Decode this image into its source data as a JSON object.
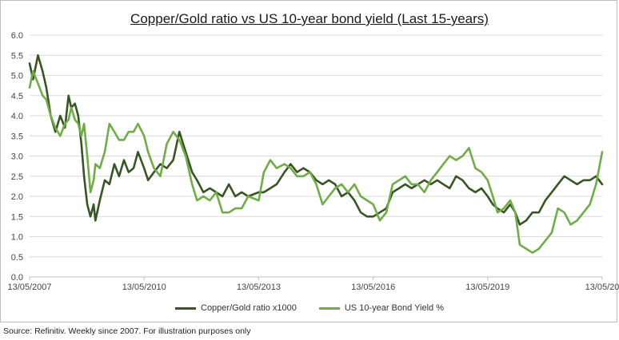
{
  "chart_data": {
    "type": "line",
    "title": "Copper/Gold ratio vs US 10-year bond yield (Last 15-years)",
    "xlabel": "",
    "ylabel": "",
    "ylim": [
      0.0,
      6.0
    ],
    "y_ticks": [
      "0.0",
      "0.5",
      "1.0",
      "1.5",
      "2.0",
      "2.5",
      "3.0",
      "3.5",
      "4.0",
      "4.5",
      "5.0",
      "5.5",
      "6.0"
    ],
    "xlim": [
      "2007-05-13",
      "2022-05-13"
    ],
    "x_tick_labels": [
      "13/05/2007",
      "13/05/2010",
      "13/05/2013",
      "13/05/2016",
      "13/05/2019",
      "13/05/20"
    ],
    "x_tick_dates": [
      "2007-05-13",
      "2010-05-13",
      "2013-05-13",
      "2016-05-13",
      "2019-05-13",
      "2022-05-13"
    ],
    "grid": "horizontal",
    "legend_position": "bottom",
    "series": [
      {
        "name": "Copper/Gold ratio x1000",
        "color": "#375623",
        "points": [
          [
            "2007-05-13",
            5.3
          ],
          [
            "2007-06-15",
            4.9
          ],
          [
            "2007-08-01",
            5.5
          ],
          [
            "2007-09-15",
            5.1
          ],
          [
            "2007-10-20",
            4.7
          ],
          [
            "2007-12-01",
            4.0
          ],
          [
            "2008-01-15",
            3.6
          ],
          [
            "2008-03-01",
            4.0
          ],
          [
            "2008-04-15",
            3.7
          ],
          [
            "2008-05-20",
            4.5
          ],
          [
            "2008-06-15",
            4.2
          ],
          [
            "2008-07-20",
            4.3
          ],
          [
            "2008-08-20",
            4.0
          ],
          [
            "2008-09-20",
            3.3
          ],
          [
            "2008-10-15",
            2.5
          ],
          [
            "2008-11-15",
            1.8
          ],
          [
            "2008-12-15",
            1.5
          ],
          [
            "2009-01-15",
            1.8
          ],
          [
            "2009-02-01",
            1.4
          ],
          [
            "2009-03-15",
            1.9
          ],
          [
            "2009-05-01",
            2.4
          ],
          [
            "2009-06-15",
            2.3
          ],
          [
            "2009-08-01",
            2.8
          ],
          [
            "2009-09-15",
            2.5
          ],
          [
            "2009-11-01",
            2.9
          ],
          [
            "2009-12-15",
            2.6
          ],
          [
            "2010-02-01",
            2.7
          ],
          [
            "2010-03-15",
            3.1
          ],
          [
            "2010-05-13",
            2.7
          ],
          [
            "2010-06-20",
            2.4
          ],
          [
            "2010-08-15",
            2.6
          ],
          [
            "2010-10-15",
            2.8
          ],
          [
            "2010-12-15",
            2.7
          ],
          [
            "2011-02-15",
            2.9
          ],
          [
            "2011-04-15",
            3.6
          ],
          [
            "2011-06-15",
            3.1
          ],
          [
            "2011-08-15",
            2.6
          ],
          [
            "2011-10-01",
            2.4
          ],
          [
            "2011-12-01",
            2.1
          ],
          [
            "2012-02-01",
            2.2
          ],
          [
            "2012-04-01",
            2.1
          ],
          [
            "2012-06-01",
            2.0
          ],
          [
            "2012-08-01",
            2.3
          ],
          [
            "2012-10-01",
            2.0
          ],
          [
            "2012-12-01",
            2.1
          ],
          [
            "2013-02-01",
            2.0
          ],
          [
            "2013-05-13",
            2.1
          ],
          [
            "2013-07-01",
            2.1
          ],
          [
            "2013-09-01",
            2.2
          ],
          [
            "2013-11-01",
            2.3
          ],
          [
            "2014-01-15",
            2.6
          ],
          [
            "2014-03-15",
            2.8
          ],
          [
            "2014-05-15",
            2.6
          ],
          [
            "2014-07-15",
            2.7
          ],
          [
            "2014-09-15",
            2.6
          ],
          [
            "2014-11-15",
            2.4
          ],
          [
            "2015-01-15",
            2.3
          ],
          [
            "2015-03-15",
            2.4
          ],
          [
            "2015-05-15",
            2.3
          ],
          [
            "2015-07-15",
            2.0
          ],
          [
            "2015-09-15",
            2.1
          ],
          [
            "2015-11-15",
            1.9
          ],
          [
            "2016-01-15",
            1.6
          ],
          [
            "2016-03-15",
            1.5
          ],
          [
            "2016-05-13",
            1.5
          ],
          [
            "2016-07-15",
            1.6
          ],
          [
            "2016-09-15",
            1.7
          ],
          [
            "2016-11-15",
            2.1
          ],
          [
            "2017-01-15",
            2.2
          ],
          [
            "2017-03-15",
            2.3
          ],
          [
            "2017-05-15",
            2.2
          ],
          [
            "2017-07-15",
            2.3
          ],
          [
            "2017-09-15",
            2.4
          ],
          [
            "2017-11-15",
            2.3
          ],
          [
            "2018-01-15",
            2.4
          ],
          [
            "2018-03-15",
            2.3
          ],
          [
            "2018-05-15",
            2.2
          ],
          [
            "2018-07-15",
            2.5
          ],
          [
            "2018-09-15",
            2.4
          ],
          [
            "2018-11-15",
            2.2
          ],
          [
            "2019-01-15",
            2.1
          ],
          [
            "2019-03-15",
            2.2
          ],
          [
            "2019-05-13",
            2.0
          ],
          [
            "2019-07-01",
            1.8
          ],
          [
            "2019-08-15",
            1.7
          ],
          [
            "2019-10-15",
            1.6
          ],
          [
            "2019-12-15",
            1.8
          ],
          [
            "2020-02-01",
            1.6
          ],
          [
            "2020-03-15",
            1.3
          ],
          [
            "2020-05-15",
            1.4
          ],
          [
            "2020-07-15",
            1.6
          ],
          [
            "2020-09-15",
            1.6
          ],
          [
            "2020-11-15",
            1.9
          ],
          [
            "2021-01-15",
            2.1
          ],
          [
            "2021-03-15",
            2.3
          ],
          [
            "2021-05-15",
            2.5
          ],
          [
            "2021-07-15",
            2.4
          ],
          [
            "2021-09-15",
            2.3
          ],
          [
            "2021-11-15",
            2.4
          ],
          [
            "2022-01-15",
            2.4
          ],
          [
            "2022-03-15",
            2.5
          ],
          [
            "2022-05-13",
            2.3
          ]
        ]
      },
      {
        "name": "US 10-year Bond Yield %",
        "color": "#70AD47",
        "points": [
          [
            "2007-05-13",
            4.7
          ],
          [
            "2007-06-15",
            5.1
          ],
          [
            "2007-08-01",
            4.8
          ],
          [
            "2007-09-15",
            4.5
          ],
          [
            "2007-10-20",
            4.4
          ],
          [
            "2007-12-01",
            4.0
          ],
          [
            "2008-01-15",
            3.7
          ],
          [
            "2008-03-01",
            3.5
          ],
          [
            "2008-04-15",
            3.8
          ],
          [
            "2008-05-20",
            3.9
          ],
          [
            "2008-06-15",
            4.2
          ],
          [
            "2008-07-20",
            3.9
          ],
          [
            "2008-08-20",
            3.8
          ],
          [
            "2008-09-20",
            3.5
          ],
          [
            "2008-10-15",
            3.8
          ],
          [
            "2008-11-15",
            3.0
          ],
          [
            "2008-12-15",
            2.1
          ],
          [
            "2009-01-15",
            2.4
          ],
          [
            "2009-02-01",
            2.8
          ],
          [
            "2009-03-15",
            2.7
          ],
          [
            "2009-05-01",
            3.1
          ],
          [
            "2009-06-15",
            3.8
          ],
          [
            "2009-08-01",
            3.6
          ],
          [
            "2009-09-15",
            3.4
          ],
          [
            "2009-11-01",
            3.4
          ],
          [
            "2009-12-15",
            3.6
          ],
          [
            "2010-02-01",
            3.6
          ],
          [
            "2010-03-15",
            3.8
          ],
          [
            "2010-05-13",
            3.5
          ],
          [
            "2010-06-20",
            3.1
          ],
          [
            "2010-08-15",
            2.7
          ],
          [
            "2010-10-15",
            2.5
          ],
          [
            "2010-12-15",
            3.3
          ],
          [
            "2011-02-15",
            3.6
          ],
          [
            "2011-04-15",
            3.4
          ],
          [
            "2011-06-15",
            3.0
          ],
          [
            "2011-08-15",
            2.3
          ],
          [
            "2011-10-01",
            1.9
          ],
          [
            "2011-12-01",
            2.0
          ],
          [
            "2012-02-01",
            1.9
          ],
          [
            "2012-04-01",
            2.1
          ],
          [
            "2012-06-01",
            1.6
          ],
          [
            "2012-08-01",
            1.6
          ],
          [
            "2012-10-01",
            1.7
          ],
          [
            "2012-12-01",
            1.7
          ],
          [
            "2013-02-01",
            2.0
          ],
          [
            "2013-05-13",
            1.9
          ],
          [
            "2013-07-01",
            2.6
          ],
          [
            "2013-09-01",
            2.9
          ],
          [
            "2013-11-01",
            2.7
          ],
          [
            "2014-01-15",
            2.8
          ],
          [
            "2014-03-15",
            2.7
          ],
          [
            "2014-05-15",
            2.5
          ],
          [
            "2014-07-15",
            2.5
          ],
          [
            "2014-09-15",
            2.6
          ],
          [
            "2014-11-15",
            2.3
          ],
          [
            "2015-01-15",
            1.8
          ],
          [
            "2015-03-15",
            2.0
          ],
          [
            "2015-05-15",
            2.2
          ],
          [
            "2015-07-15",
            2.3
          ],
          [
            "2015-09-15",
            2.1
          ],
          [
            "2015-11-15",
            2.3
          ],
          [
            "2016-01-15",
            2.0
          ],
          [
            "2016-03-15",
            1.9
          ],
          [
            "2016-05-13",
            1.8
          ],
          [
            "2016-07-15",
            1.4
          ],
          [
            "2016-09-15",
            1.6
          ],
          [
            "2016-11-15",
            2.3
          ],
          [
            "2017-01-15",
            2.4
          ],
          [
            "2017-03-15",
            2.5
          ],
          [
            "2017-05-15",
            2.3
          ],
          [
            "2017-07-15",
            2.3
          ],
          [
            "2017-09-15",
            2.1
          ],
          [
            "2017-11-15",
            2.4
          ],
          [
            "2018-01-15",
            2.6
          ],
          [
            "2018-03-15",
            2.8
          ],
          [
            "2018-05-15",
            3.0
          ],
          [
            "2018-07-15",
            2.9
          ],
          [
            "2018-09-15",
            3.0
          ],
          [
            "2018-11-15",
            3.2
          ],
          [
            "2019-01-15",
            2.7
          ],
          [
            "2019-03-15",
            2.6
          ],
          [
            "2019-05-13",
            2.4
          ],
          [
            "2019-07-01",
            2.0
          ],
          [
            "2019-08-15",
            1.6
          ],
          [
            "2019-10-15",
            1.7
          ],
          [
            "2019-12-15",
            1.9
          ],
          [
            "2020-02-01",
            1.6
          ],
          [
            "2020-03-15",
            0.8
          ],
          [
            "2020-05-15",
            0.7
          ],
          [
            "2020-07-15",
            0.6
          ],
          [
            "2020-09-15",
            0.7
          ],
          [
            "2020-11-15",
            0.9
          ],
          [
            "2021-01-15",
            1.1
          ],
          [
            "2021-03-15",
            1.7
          ],
          [
            "2021-05-15",
            1.6
          ],
          [
            "2021-07-15",
            1.3
          ],
          [
            "2021-09-15",
            1.4
          ],
          [
            "2021-11-15",
            1.6
          ],
          [
            "2022-01-15",
            1.8
          ],
          [
            "2022-03-15",
            2.3
          ],
          [
            "2022-05-13",
            3.1
          ]
        ]
      }
    ]
  },
  "footer": {
    "source": "Source: Refinitiv. Weekly since 2007. For illustration purposes only"
  }
}
